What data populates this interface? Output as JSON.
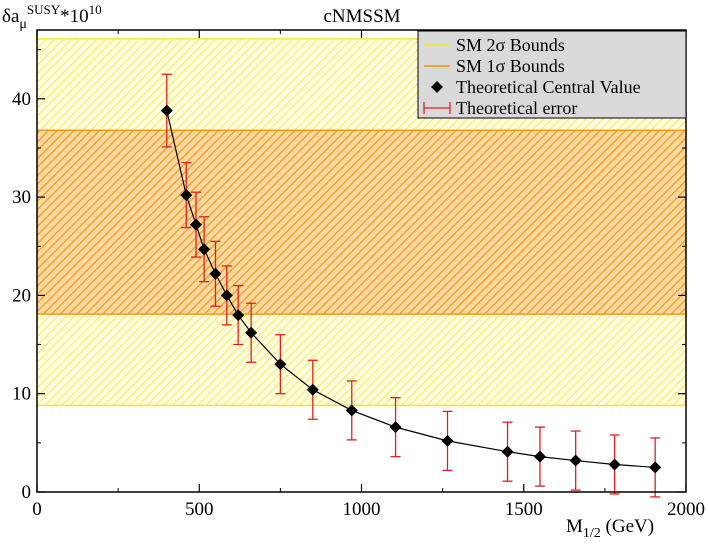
{
  "chart_data": {
    "type": "scatter",
    "title": "cNMSSM",
    "ylabel_main": "δa",
    "ylabel_sub": "μ",
    "ylabel_sup": "SUSY",
    "ylabel_suffix": "*10",
    "ylabel_exp": "10",
    "xlabel_main": "M",
    "xlabel_sub": "1/2",
    "xlabel_unit": " (GeV)",
    "xlim": [
      0,
      2000
    ],
    "ylim": [
      0,
      47
    ],
    "xticks": [
      0,
      500,
      1000,
      1500,
      2000
    ],
    "yticks": [
      0,
      10,
      20,
      30,
      40
    ],
    "bands": [
      {
        "name": "SM 2σ Bounds",
        "low": 8.8,
        "high": 46.1,
        "color": "#f2e833",
        "fill": "#fffcd0"
      },
      {
        "name": "SM 1σ Bounds",
        "low": 18.1,
        "high": 36.8,
        "color": "#f29b20",
        "fill": "#fbd79a"
      }
    ],
    "series": [
      {
        "name": "Theoretical Central Value",
        "color": "#000000",
        "x": [
          400,
          460,
          490,
          515,
          550,
          585,
          620,
          660,
          750,
          850,
          970,
          1105,
          1265,
          1450,
          1550,
          1660,
          1780,
          1905
        ],
        "y": [
          38.8,
          30.2,
          27.2,
          24.7,
          22.2,
          20.0,
          18.0,
          16.2,
          13.0,
          10.4,
          8.3,
          6.6,
          5.2,
          4.1,
          3.6,
          3.2,
          2.8,
          2.5
        ],
        "err": [
          3.7,
          3.3,
          3.3,
          3.3,
          3.3,
          3.0,
          3.0,
          3.0,
          3.0,
          3.0,
          3.0,
          3.0,
          3.0,
          3.0,
          3.0,
          3.0,
          3.0,
          3.0
        ]
      }
    ],
    "legend": [
      {
        "label": "SM 2σ Bounds",
        "kind": "line",
        "color": "#f2e833"
      },
      {
        "label": "SM 1σ Bounds",
        "kind": "line",
        "color": "#f29b20"
      },
      {
        "label": "Theoretical Central Value",
        "kind": "diamond",
        "color": "#000000"
      },
      {
        "label": "Theoretical error",
        "kind": "errorbar",
        "color": "#e02020"
      }
    ],
    "legend_position": "top-right"
  }
}
